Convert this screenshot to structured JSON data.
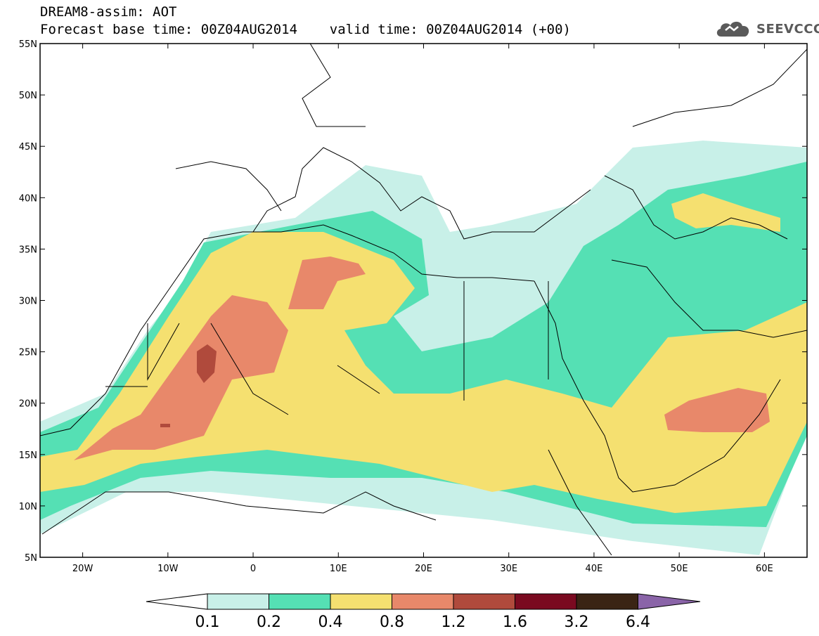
{
  "header": {
    "line1": "DREAM8-assim: AOT",
    "line2": "Forecast base time: 00Z04AUG2014    valid time: 00Z04AUG2014 (+00)"
  },
  "logo": {
    "text": "SEEVCCC",
    "icon": "cloud-icon"
  },
  "map": {
    "lat_range": [
      "5N",
      "55N"
    ],
    "lon_range": [
      "25W",
      "65E"
    ],
    "lat_ticks": [
      "55N",
      "50N",
      "45N",
      "40N",
      "35N",
      "30N",
      "25N",
      "20N",
      "15N",
      "10N",
      "5N"
    ],
    "lon_ticks": [
      "20W",
      "10W",
      "0",
      "10E",
      "20E",
      "30E",
      "40E",
      "50E",
      "60E"
    ]
  },
  "colorbar": {
    "labels": [
      "0.1",
      "0.2",
      "0.4",
      "0.8",
      "1.2",
      "1.6",
      "3.2",
      "6.4"
    ],
    "colors": [
      "#ffffff",
      "#c8f0e8",
      "#55e0b4",
      "#f5e070",
      "#e8886a",
      "#b04a3c",
      "#7a0a20",
      "#3a2414",
      "#8a64a8"
    ]
  }
}
